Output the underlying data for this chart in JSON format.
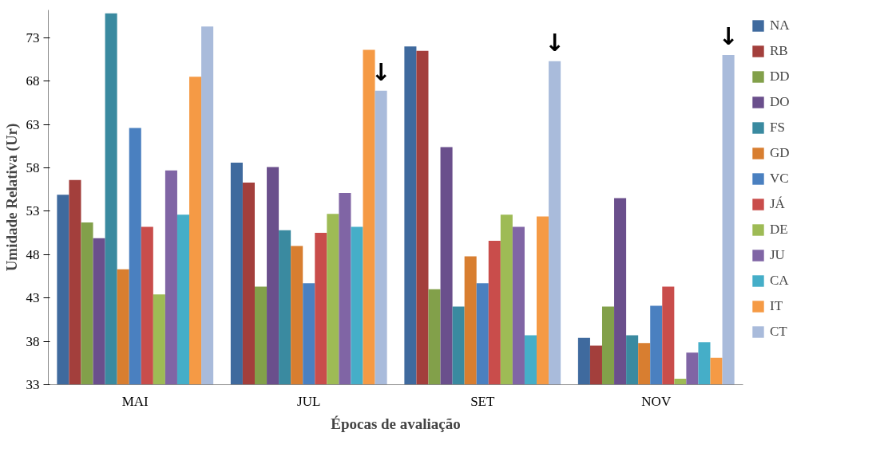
{
  "chart_data": {
    "type": "bar",
    "xlabel": "Épocas de avaliação",
    "ylabel": "Umidade Relativa (Ur)",
    "categories": [
      "MAI",
      "JUL",
      "SET",
      "NOV"
    ],
    "series": [
      {
        "name": "NA",
        "color": "#3f6a9e",
        "values": [
          54.9,
          58.6,
          72.0,
          38.4
        ]
      },
      {
        "name": "RB",
        "color": "#a33f3c",
        "values": [
          56.6,
          56.3,
          71.5,
          37.5
        ]
      },
      {
        "name": "DD",
        "color": "#82a04a",
        "values": [
          51.7,
          44.3,
          44.0,
          42.0
        ]
      },
      {
        "name": "DO",
        "color": "#6a4f8c",
        "values": [
          49.9,
          58.1,
          60.4,
          54.5
        ]
      },
      {
        "name": "FS",
        "color": "#3a8aa0",
        "values": [
          75.8,
          50.8,
          42.0,
          38.7
        ]
      },
      {
        "name": "GD",
        "color": "#d87e30",
        "values": [
          46.3,
          49.0,
          47.8,
          37.8
        ]
      },
      {
        "name": "VC",
        "color": "#4a80c0",
        "values": [
          62.6,
          44.7,
          44.7,
          42.1
        ]
      },
      {
        "name": "JÁ",
        "color": "#c94d4b",
        "values": [
          51.2,
          50.5,
          49.6,
          44.3
        ]
      },
      {
        "name": "DE",
        "color": "#9ebb55",
        "values": [
          43.4,
          52.7,
          52.6,
          33.7
        ]
      },
      {
        "name": "JU",
        "color": "#8065a5",
        "values": [
          57.7,
          55.1,
          51.2,
          36.7
        ]
      },
      {
        "name": "CA",
        "color": "#45aec8",
        "values": [
          52.6,
          51.2,
          38.7,
          37.9
        ]
      },
      {
        "name": "IT",
        "color": "#f59a45",
        "values": [
          68.5,
          71.6,
          52.4,
          36.1
        ]
      },
      {
        "name": "CT",
        "color": "#a9bbdb",
        "values": [
          74.3,
          66.9,
          70.3,
          71.0
        ]
      }
    ],
    "ylim": [
      33,
      76.2
    ],
    "yticks": [
      33,
      38,
      43,
      48,
      53,
      58,
      63,
      68,
      73
    ],
    "grid": false,
    "legend": "right",
    "annotations": [
      "↓",
      "↓",
      "↓"
    ]
  }
}
